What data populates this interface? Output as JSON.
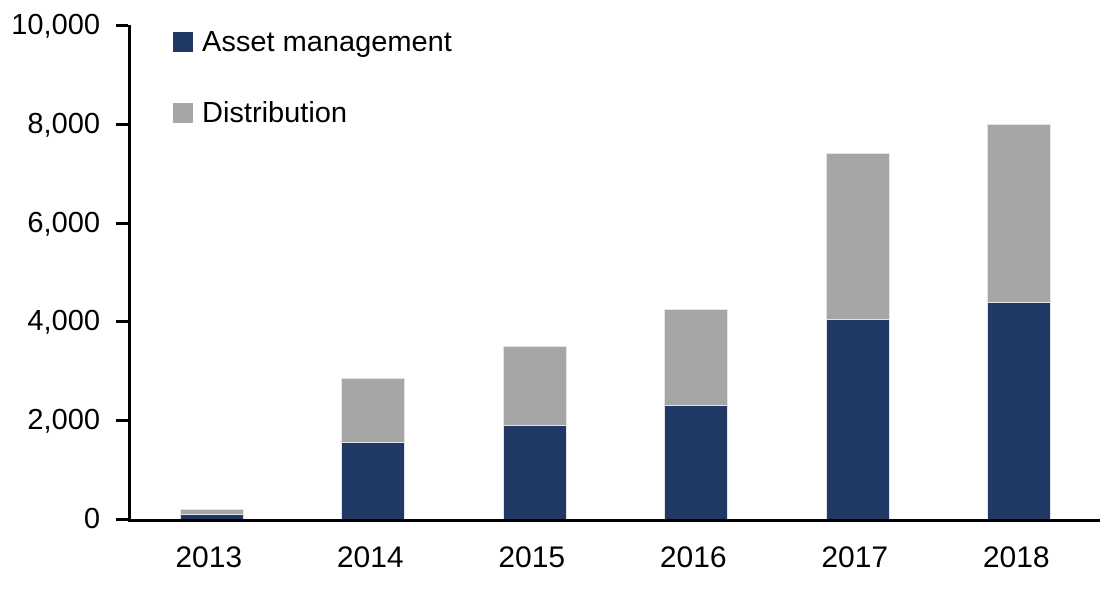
{
  "chart_data": {
    "type": "bar",
    "stacked": true,
    "title": "",
    "xlabel": "",
    "ylabel": "",
    "categories": [
      "2013",
      "2014",
      "2015",
      "2016",
      "2017",
      "2018"
    ],
    "series": [
      {
        "name": "Asset management",
        "color": "#1F3864",
        "values": [
          100,
          1550,
          1900,
          2300,
          4050,
          4400
        ]
      },
      {
        "name": "Distribution",
        "color": "#A6A6A6",
        "values": [
          100,
          1300,
          1600,
          1950,
          3350,
          3600
        ]
      }
    ],
    "totals": [
      200,
      2850,
      3500,
      4250,
      7400,
      8000
    ],
    "ylim": [
      0,
      10000
    ],
    "ytick_interval": 2000,
    "ytick_labels": [
      "0",
      "2,000",
      "4,000",
      "6,000",
      "8,000",
      "10,000"
    ],
    "grid": false,
    "legend_position": "inside-top-left"
  },
  "colors": {
    "axis": "#000000",
    "background": "#FFFFFF",
    "asset_management": "#1F3864",
    "distribution": "#A6A6A6"
  }
}
